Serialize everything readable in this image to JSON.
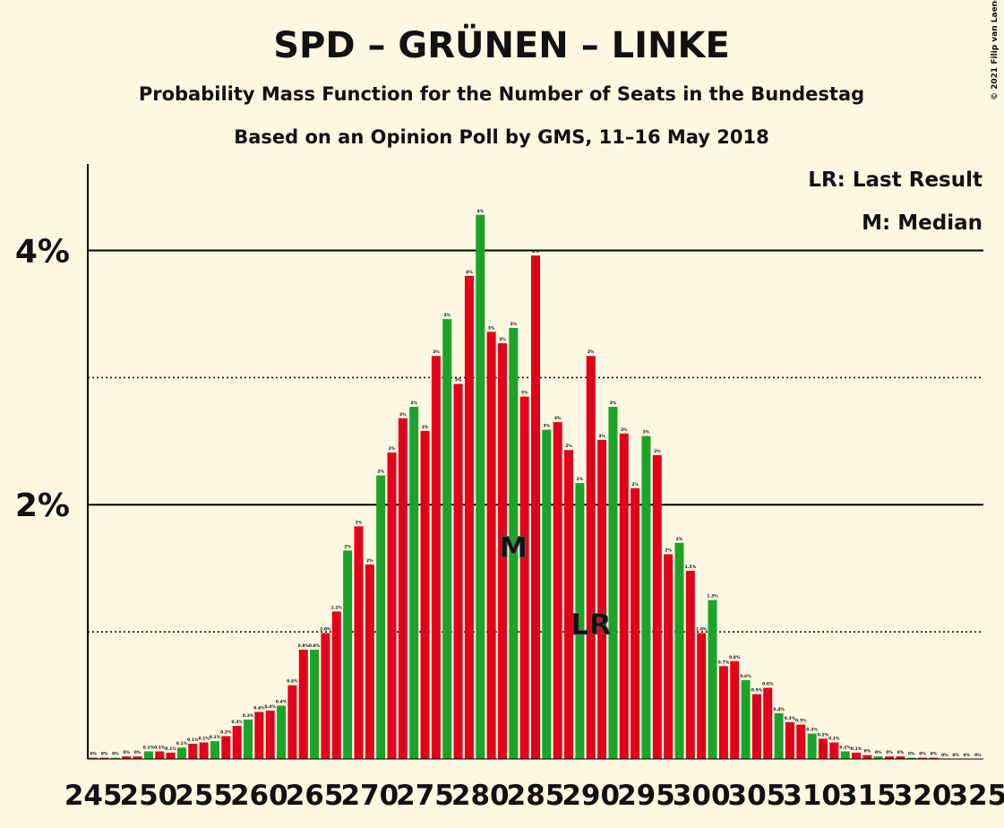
{
  "chart_data": {
    "type": "bar",
    "title": "SPD – GRÜNEN – LINKE",
    "subtitle": "Probability Mass Function for the Number of Seats in the Bundestag",
    "subtitle2": "Based on an Opinion Poll by GMS, 11–16 May 2018",
    "copyright": "© 2021 Filip van Laenen",
    "legend": [
      "LR: Last Result",
      "M: Median"
    ],
    "categories": [
      245,
      null,
      null,
      null,
      null,
      250,
      null,
      null,
      null,
      null,
      255,
      null,
      null,
      null,
      null,
      260,
      null,
      null,
      null,
      null,
      265,
      null,
      null,
      null,
      null,
      270,
      null,
      null,
      null,
      null,
      275,
      null,
      null,
      null,
      null,
      280,
      null,
      null,
      null,
      null,
      285,
      null,
      null,
      null,
      null,
      290,
      null,
      null,
      null,
      null,
      295,
      null,
      null,
      null,
      null,
      300,
      null,
      null,
      null,
      null,
      305,
      null,
      null,
      null,
      null,
      310,
      null,
      null,
      null,
      null,
      315,
      null,
      null,
      null,
      null,
      320,
      null,
      null,
      null,
      null,
      325
    ],
    "values": [
      0.01,
      0.01,
      0.01,
      0.02,
      0.02,
      0.06,
      0.06,
      0.05,
      0.09,
      0.12,
      0.13,
      0.14,
      0.18,
      0.26,
      0.31,
      0.37,
      0.38,
      0.42,
      0.58,
      0.86,
      0.86,
      0.99,
      1.16,
      1.64,
      1.83,
      1.53,
      2.23,
      2.41,
      2.68,
      2.77,
      2.58,
      3.17,
      3.46,
      2.95,
      3.8,
      4.28,
      3.36,
      3.27,
      3.39,
      2.85,
      3.96,
      2.59,
      2.65,
      2.43,
      2.17,
      3.17,
      2.51,
      2.77,
      2.56,
      2.13,
      2.54,
      2.39,
      1.61,
      1.7,
      1.48,
      0.99,
      1.25,
      0.73,
      0.77,
      0.62,
      0.51,
      0.56,
      0.36,
      0.29,
      0.27,
      0.2,
      0.16,
      0.13,
      0.06,
      0.05,
      0.03,
      0.02,
      0.02,
      0.02,
      0.01,
      0.01,
      0.01,
      0,
      0,
      0,
      0
    ],
    "value_labels": [
      "0%",
      "0%",
      "0%",
      "0%",
      "0%",
      "0.1%",
      "0.1%",
      "0.1%",
      "0.1%",
      "0.1%",
      "0.1%",
      "0.1%",
      "0.2%",
      "0.3%",
      "0.3%",
      "0.4%",
      "0.4%",
      "0.4%",
      "0.6%",
      "0.9%",
      "0.9%",
      "1.0%",
      "1.2%",
      "2%",
      "2%",
      "2%",
      "2%",
      "2%",
      "3%",
      "3%",
      "3%",
      "3%",
      "3%",
      "3%",
      "4%",
      "4%",
      "3%",
      "3%",
      "3%",
      "3%",
      "4%",
      "3%",
      "3%",
      "2%",
      "2%",
      "3%",
      "3%",
      "3%",
      "3%",
      "2%",
      "3%",
      "2%",
      "2%",
      "2%",
      "1.5%",
      "1.0%",
      "1.3%",
      "0.7%",
      "0.8%",
      "0.6%",
      "0.5%",
      "0.6%",
      "0.4%",
      "0.3%",
      "0.3%",
      "0.2%",
      "0.2%",
      "0.1%",
      "0.1%",
      "0.1%",
      "0%",
      "0%",
      "0%",
      "0%",
      "0%",
      "0%",
      "0%",
      "0%",
      "0%",
      "0%",
      "0%"
    ],
    "color_cycle": [
      "#e2001a",
      "#e2001a",
      "#1ba32a"
    ],
    "ylim": [
      0,
      4.68
    ],
    "yticks": [
      {
        "value": 2,
        "label": "2%"
      },
      {
        "value": 4,
        "label": "4%"
      }
    ],
    "minor_gridlines": [
      1,
      3
    ],
    "markers": [
      {
        "index": 38,
        "label": "M"
      },
      {
        "index": 45,
        "label": "LR"
      }
    ]
  }
}
